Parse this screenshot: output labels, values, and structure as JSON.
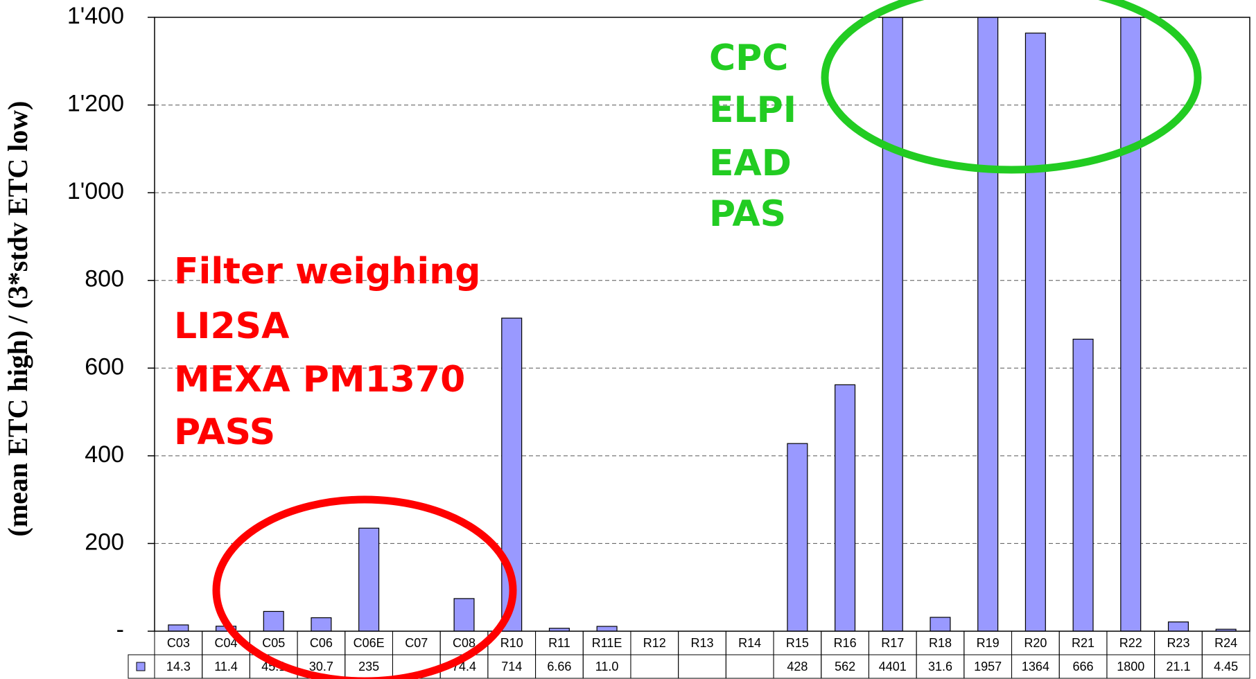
{
  "chart_data": {
    "type": "bar",
    "y_label": "(mean ETC high) / (3*stdv ETC low)",
    "categories": [
      "C03",
      "C04",
      "C05",
      "C06",
      "C06E",
      "C07",
      "C08",
      "R10",
      "R11",
      "R11E",
      "R12",
      "R13",
      "R14",
      "R15",
      "R16",
      "R17",
      "R18",
      "R19",
      "R20",
      "R21",
      "R22",
      "R23",
      "R24"
    ],
    "values": [
      14.3,
      11.4,
      45.1,
      30.7,
      235,
      null,
      74.4,
      714,
      6.66,
      11.0,
      null,
      null,
      null,
      428,
      562,
      4401,
      31.6,
      1957,
      1364,
      666,
      1800,
      21.1,
      4.45
    ],
    "value_labels": [
      "14.3",
      "11.4",
      "45.1",
      "30.7",
      "235",
      null,
      "74.4",
      "714",
      "6.66",
      "11.0",
      null,
      null,
      null,
      "428",
      "562",
      "4401",
      "31.6",
      "1957",
      "1364",
      "666",
      "1800",
      "21.1",
      "4.45"
    ],
    "color": "#9999ff",
    "ylim": [
      0,
      1400
    ],
    "yticks": [
      {
        "value": 0,
        "label": "-"
      },
      200,
      400,
      600,
      800,
      {
        "value": 1000,
        "label": "1'000"
      },
      {
        "value": 1200,
        "label": "1'200"
      },
      {
        "value": 1400,
        "label": "1'400"
      }
    ],
    "grid": true,
    "annotations_red": [
      "Filter weighing",
      "LI2SA",
      "MEXA PM1370",
      "PASS"
    ],
    "annotations_green": [
      "CPC",
      "ELPI",
      "EAD",
      "PAS"
    ]
  }
}
